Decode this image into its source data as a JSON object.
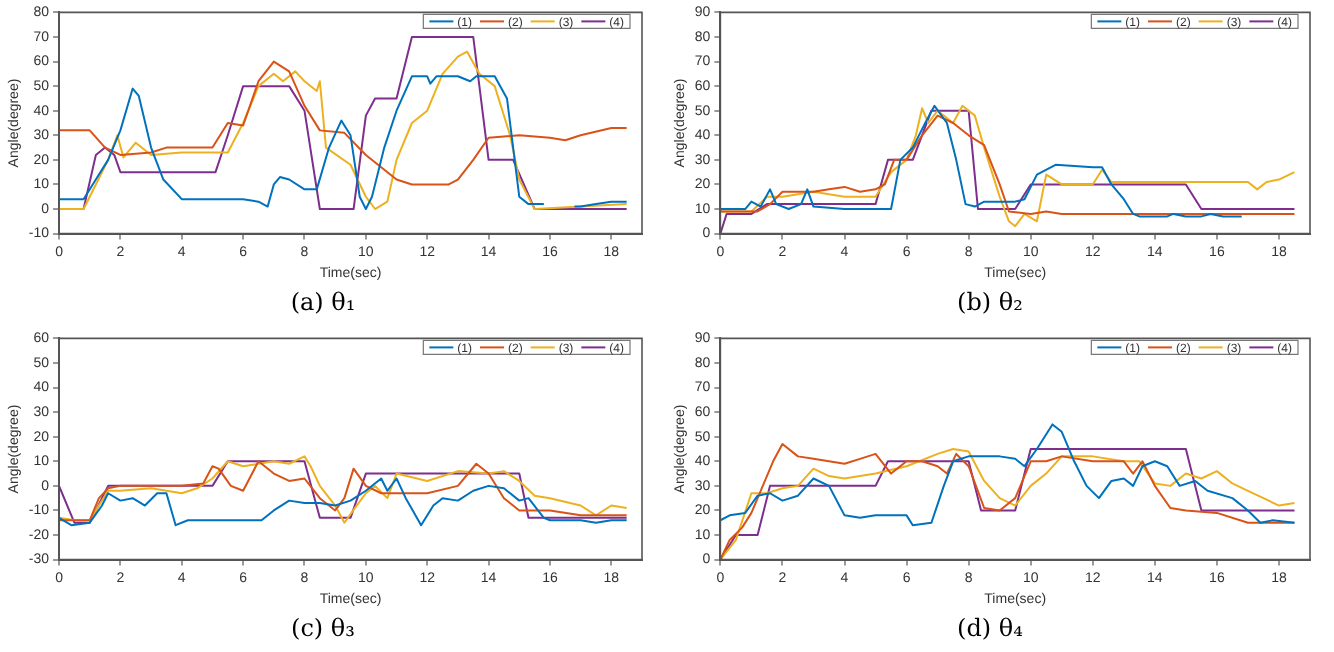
{
  "chart_data": [
    {
      "type": "line",
      "title": "(a) θ₁",
      "xlabel": "Time(sec)",
      "ylabel": "Angle(degree)",
      "xlim": [
        0,
        19
      ],
      "xticks": [
        0,
        2,
        4,
        6,
        8,
        10,
        12,
        14,
        16,
        18
      ],
      "ylim": [
        -10,
        80
      ],
      "yticks": [
        -10,
        0,
        10,
        20,
        30,
        40,
        50,
        60,
        70,
        80
      ],
      "legend": "top right",
      "grid": false,
      "series": [
        {
          "name": "(1)",
          "color": "#0072bd",
          "x": [
            0,
            0.8,
            1.2,
            1.6,
            2,
            2.4,
            2.6,
            3,
            3.4,
            4,
            5,
            6,
            6.5,
            6.8,
            7,
            7.2,
            7.5,
            8,
            8.4,
            8.8,
            9.2,
            9.5,
            9.8,
            10,
            10.2,
            10.6,
            11,
            11.5,
            12,
            12.1,
            12.3,
            13,
            13.4,
            13.6,
            14.2,
            14.6,
            15,
            15.3,
            15.8,
            16.3,
            16.8,
            17,
            17.5,
            18,
            18.5
          ],
          "values": [
            4,
            4,
            12,
            20,
            32,
            49,
            46,
            25,
            12,
            4,
            4,
            4,
            3,
            1,
            10,
            13,
            12,
            8,
            8,
            25,
            36,
            30,
            5,
            0,
            5,
            25,
            40,
            54,
            54,
            51,
            54,
            54,
            52,
            54,
            54,
            45,
            5,
            2,
            2,
            null,
            1,
            1,
            2,
            3,
            3
          ]
        },
        {
          "name": "(2)",
          "color": "#d95319",
          "x": [
            0,
            1,
            1.5,
            2,
            3,
            3.5,
            5,
            5.5,
            6,
            6.5,
            7,
            7.5,
            8,
            8.5,
            9.3,
            10,
            10.5,
            11,
            11.5,
            12,
            12.7,
            13,
            13.5,
            14,
            15,
            16,
            16.5,
            17,
            18,
            18.5
          ],
          "values": [
            32,
            32,
            25,
            22,
            23,
            25,
            25,
            35,
            34,
            52,
            60,
            56,
            42,
            32,
            31,
            22,
            17,
            12,
            10,
            10,
            10,
            12,
            20,
            29,
            30,
            29,
            28,
            30,
            33,
            33
          ]
        },
        {
          "name": "(3)",
          "color": "#edb120",
          "x": [
            0,
            0.8,
            1.2,
            1.6,
            1.9,
            2.1,
            2.5,
            3,
            4,
            5,
            5.5,
            6,
            6.5,
            7,
            7.3,
            7.7,
            8,
            8.4,
            8.5,
            8.7,
            9.5,
            10,
            10.3,
            10.7,
            11,
            11.5,
            12,
            12.5,
            13,
            13.3,
            13.7,
            14.2,
            14.7,
            15,
            15.5,
            18.5
          ],
          "values": [
            0,
            0,
            10,
            20,
            30,
            21,
            27,
            22,
            23,
            23,
            23,
            35,
            50,
            55,
            52,
            56,
            52,
            48,
            52,
            25,
            18,
            5,
            0,
            3,
            20,
            35,
            40,
            55,
            62,
            64,
            55,
            50,
            30,
            12,
            0,
            2
          ]
        },
        {
          "name": "(4)",
          "color": "#7e2f8e",
          "x": [
            0,
            0.8,
            1.2,
            1.5,
            1.8,
            2,
            5.1,
            5.5,
            6,
            7.5,
            8,
            8.5,
            9.6,
            10,
            10.3,
            11,
            11.5,
            13.5,
            14,
            14.8,
            15.5,
            18.5
          ],
          "values": [
            0,
            0,
            22,
            25,
            22,
            15,
            15,
            30,
            50,
            50,
            40,
            0,
            0,
            38,
            45,
            45,
            70,
            70,
            20,
            20,
            0,
            0
          ]
        }
      ]
    },
    {
      "type": "line",
      "title": "(b) θ₂",
      "xlabel": "Time(sec)",
      "ylabel": "Angle(degree)",
      "xlim": [
        0,
        19
      ],
      "xticks": [
        0,
        2,
        4,
        6,
        8,
        10,
        12,
        14,
        16,
        18
      ],
      "ylim": [
        0,
        90
      ],
      "yticks": [
        0,
        10,
        20,
        30,
        40,
        50,
        60,
        70,
        80,
        90
      ],
      "legend": "top right",
      "grid": false,
      "series": [
        {
          "name": "(1)",
          "color": "#0072bd",
          "x": [
            0,
            0.8,
            1,
            1.3,
            1.6,
            1.8,
            2.2,
            2.6,
            2.8,
            3,
            4,
            5,
            5.5,
            5.8,
            6.2,
            6.6,
            6.9,
            7.3,
            7.6,
            7.9,
            8.2,
            8.5,
            9,
            9.5,
            9.8,
            10.2,
            10.8,
            12,
            12.3,
            12.6,
            13,
            13.3,
            13.5,
            14.4,
            14.6,
            15,
            15.5,
            15.8,
            16.2,
            16.8
          ],
          "values": [
            10,
            10,
            13,
            11,
            18,
            12,
            10,
            12,
            18,
            11,
            10,
            10,
            10,
            30,
            35,
            45,
            52,
            45,
            30,
            12,
            11,
            13,
            13,
            13,
            14,
            24,
            28,
            27,
            27,
            20,
            14,
            8,
            7,
            7,
            8,
            7,
            7,
            8,
            7,
            7
          ]
        },
        {
          "name": "(2)",
          "color": "#d95319",
          "x": [
            0,
            1.2,
            1.6,
            2,
            3,
            3.5,
            4,
            4.5,
            5,
            5.3,
            5.6,
            6,
            6.5,
            7,
            7.5,
            8,
            8.5,
            9,
            9.3,
            10,
            10.5,
            11,
            12,
            18.5
          ],
          "values": [
            9,
            9,
            12,
            17,
            17,
            18,
            19,
            17,
            18,
            20,
            30,
            30,
            40,
            48,
            45,
            40,
            36,
            20,
            9,
            8,
            9,
            8,
            8,
            8
          ]
        },
        {
          "name": "(3)",
          "color": "#edb120",
          "x": [
            0,
            1,
            1.5,
            2,
            3,
            4,
            5,
            5.5,
            6,
            6.3,
            6.5,
            6.7,
            7,
            7.5,
            7.8,
            8.2,
            8.5,
            9,
            9.3,
            9.5,
            9.8,
            10.2,
            10.5,
            11,
            12,
            12.3,
            12.6,
            14,
            16,
            17,
            17.3,
            17.6,
            18,
            18.5
          ],
          "values": [
            9,
            9,
            15,
            15,
            17,
            15,
            15,
            25,
            30,
            40,
            51,
            45,
            50,
            45,
            52,
            48,
            35,
            15,
            5,
            3,
            8,
            5,
            24,
            20,
            20,
            26,
            21,
            21,
            21,
            21,
            18,
            21,
            22,
            25
          ]
        },
        {
          "name": "(4)",
          "color": "#7e2f8e",
          "x": [
            0,
            0.2,
            1,
            1.5,
            5,
            5.4,
            6.2,
            6.8,
            8,
            8.3,
            9.5,
            10,
            15,
            15.5,
            18.5
          ],
          "values": [
            0,
            8,
            8,
            12,
            12,
            30,
            30,
            50,
            50,
            10,
            10,
            20,
            20,
            10,
            10
          ]
        }
      ]
    },
    {
      "type": "line",
      "title": "(c) θ₃",
      "xlabel": "Time(sec)",
      "ylabel": "Angle(degree)",
      "xlim": [
        0,
        19
      ],
      "xticks": [
        0,
        2,
        4,
        6,
        8,
        10,
        12,
        14,
        16,
        18
      ],
      "ylim": [
        -30,
        60
      ],
      "yticks": [
        -30,
        -20,
        -10,
        0,
        10,
        20,
        30,
        40,
        50,
        60
      ],
      "legend": "top right",
      "grid": false,
      "series": [
        {
          "name": "(1)",
          "color": "#0072bd",
          "x": [
            0,
            0.4,
            1,
            1.4,
            1.6,
            2,
            2.4,
            2.8,
            3.2,
            3.5,
            3.8,
            4.2,
            5,
            6,
            6.6,
            7,
            7.5,
            8,
            8.5,
            9,
            9.5,
            10,
            10.5,
            10.7,
            11,
            11.3,
            11.8,
            12.2,
            12.5,
            13,
            13.5,
            14,
            14.5,
            15,
            15.3,
            15.8,
            16,
            17,
            17.5,
            18,
            18.5
          ],
          "values": [
            -13,
            -16,
            -15,
            -8,
            -3,
            -6,
            -5,
            -8,
            -3,
            -3,
            -16,
            -14,
            -14,
            -14,
            -14,
            -10,
            -6,
            -7,
            -7,
            -8,
            -6,
            -2,
            3,
            -2,
            3,
            -5,
            -16,
            -8,
            -5,
            -6,
            -2,
            0,
            -1,
            -6,
            -5,
            -13,
            -14,
            -14,
            -15,
            -14,
            -14
          ]
        },
        {
          "name": "(2)",
          "color": "#d95319",
          "x": [
            0,
            1,
            1.3,
            1.6,
            2,
            3,
            4,
            4.7,
            5,
            5.2,
            5.6,
            6,
            6.5,
            7,
            7.5,
            8,
            8.5,
            9,
            9.3,
            9.6,
            10,
            10.5,
            11,
            12,
            13,
            13.6,
            14,
            14.5,
            15,
            16,
            17,
            18,
            18.5
          ],
          "values": [
            -14,
            -14,
            -5,
            -1,
            0,
            0,
            0,
            1,
            8,
            7,
            0,
            -2,
            10,
            5,
            2,
            3,
            -5,
            -10,
            -5,
            7,
            0,
            -3,
            -3,
            -3,
            0,
            9,
            5,
            -5,
            -10,
            -10,
            -12,
            -12,
            -12
          ]
        },
        {
          "name": "(3)",
          "color": "#edb120",
          "x": [
            0,
            0.5,
            1,
            1.6,
            2,
            3,
            4,
            4.5,
            5,
            5.5,
            6,
            7,
            7.5,
            8,
            8.2,
            8.5,
            9,
            9.3,
            9.7,
            10,
            10.3,
            10.7,
            11,
            12,
            13,
            14,
            14.5,
            15,
            15.5,
            16,
            17,
            17.5,
            18,
            18.5
          ],
          "values": [
            -13,
            -14,
            -14,
            -2,
            -2,
            -1,
            -3,
            -1,
            3,
            10,
            8,
            10,
            9,
            12,
            8,
            0,
            -8,
            -15,
            -8,
            -3,
            0,
            -5,
            5,
            2,
            6,
            5,
            6,
            2,
            -4,
            -5,
            -8,
            -12,
            -8,
            -9
          ]
        },
        {
          "name": "(4)",
          "color": "#7e2f8e",
          "x": [
            0,
            0.5,
            1,
            1.6,
            5,
            5.5,
            8,
            8.5,
            9.5,
            10,
            15,
            15.3,
            18.5
          ],
          "values": [
            0,
            -15,
            -15,
            0,
            0,
            10,
            10,
            -13,
            -13,
            5,
            5,
            -13,
            -13
          ]
        }
      ]
    },
    {
      "type": "line",
      "title": "(d) θ₄",
      "xlabel": "Time(sec)",
      "ylabel": "Angle(degree)",
      "xlim": [
        0,
        19
      ],
      "xticks": [
        0,
        2,
        4,
        6,
        8,
        10,
        12,
        14,
        16,
        18
      ],
      "ylim": [
        0,
        90
      ],
      "yticks": [
        0,
        10,
        20,
        30,
        40,
        50,
        60,
        70,
        80,
        90
      ],
      "legend": "top right",
      "grid": false,
      "series": [
        {
          "name": "(1)",
          "color": "#0072bd",
          "x": [
            0,
            0.3,
            0.8,
            1.2,
            1.6,
            2,
            2.5,
            3,
            3.5,
            4,
            4.5,
            5,
            6,
            6.2,
            6.8,
            7.2,
            7.5,
            8,
            9,
            9.5,
            9.8,
            10.2,
            10.7,
            11,
            11.4,
            11.8,
            12.2,
            12.6,
            13,
            13.3,
            13.6,
            14,
            14.4,
            14.8,
            15.3,
            15.7,
            16.5,
            17,
            17.4,
            17.8,
            18.5
          ],
          "values": [
            16,
            18,
            19,
            26,
            27,
            24,
            26,
            33,
            30,
            18,
            17,
            18,
            18,
            14,
            15,
            30,
            40,
            42,
            42,
            41,
            38,
            45,
            55,
            52,
            40,
            30,
            25,
            32,
            33,
            30,
            38,
            40,
            38,
            30,
            32,
            28,
            25,
            20,
            15,
            16,
            15
          ]
        },
        {
          "name": "(2)",
          "color": "#d95319",
          "x": [
            0,
            0.3,
            0.7,
            1,
            1.3,
            1.7,
            2,
            2.5,
            3,
            4,
            4.5,
            5,
            5.5,
            6,
            6.5,
            7,
            7.3,
            7.6,
            8,
            8.5,
            9,
            9.5,
            10,
            10.5,
            11,
            12,
            13,
            13.3,
            13.6,
            14,
            14.5,
            15,
            16,
            17,
            18,
            18.5
          ],
          "values": [
            0,
            8,
            13,
            19,
            28,
            40,
            47,
            42,
            41,
            39,
            41,
            43,
            35,
            40,
            40,
            38,
            35,
            43,
            38,
            21,
            20,
            25,
            40,
            40,
            42,
            40,
            40,
            35,
            40,
            30,
            21,
            20,
            19,
            15,
            15,
            15
          ]
        },
        {
          "name": "(3)",
          "color": "#edb120",
          "x": [
            0,
            0.5,
            1,
            1.5,
            2,
            2.5,
            3,
            3.5,
            4,
            5,
            6,
            7,
            7.5,
            8,
            8.5,
            9,
            9.5,
            10,
            10.5,
            11,
            12,
            13,
            13.5,
            14,
            14.5,
            15,
            15.5,
            16,
            16.5,
            17,
            17.5,
            18,
            18.5
          ],
          "values": [
            0,
            8,
            27,
            27,
            29,
            30,
            37,
            34,
            33,
            35,
            38,
            43,
            45,
            44,
            32,
            25,
            22,
            30,
            35,
            42,
            42,
            40,
            40,
            31,
            30,
            35,
            33,
            36,
            31,
            28,
            25,
            22,
            23
          ]
        },
        {
          "name": "(4)",
          "color": "#7e2f8e",
          "x": [
            0,
            0.5,
            1.2,
            1.6,
            5,
            5.4,
            8,
            8.4,
            9.5,
            10,
            15,
            15.5,
            18.5
          ],
          "values": [
            0,
            10,
            10,
            30,
            30,
            40,
            40,
            20,
            20,
            45,
            45,
            20,
            20
          ]
        }
      ]
    }
  ]
}
